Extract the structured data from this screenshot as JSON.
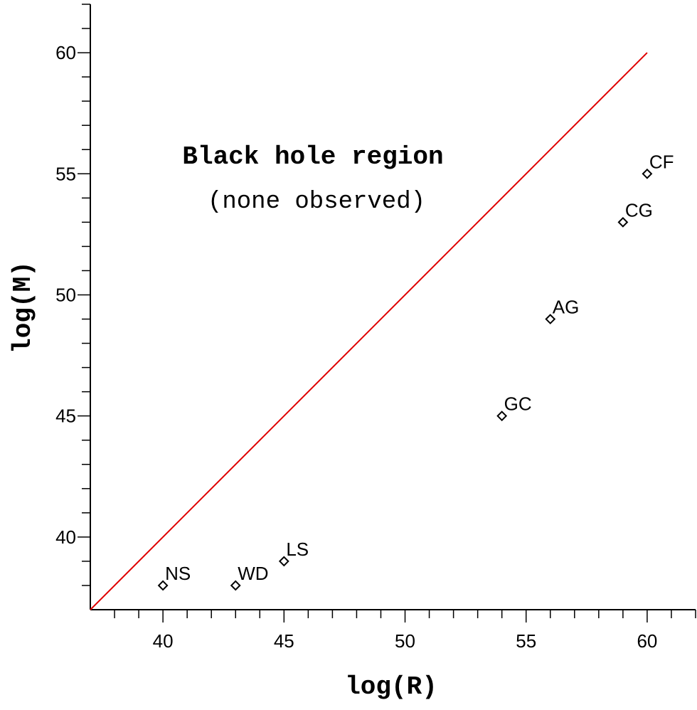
{
  "chart_data": {
    "type": "scatter",
    "xlabel": "log(R)",
    "ylabel": "log(M)",
    "xlim": [
      37,
      62
    ],
    "ylim": [
      37,
      62
    ],
    "xticks": [
      "40",
      "45",
      "50",
      "55",
      "60"
    ],
    "yticks": [
      "40",
      "45",
      "50",
      "55",
      "60"
    ],
    "grid": false,
    "points": [
      {
        "label": "NS",
        "x": 40,
        "y": 38
      },
      {
        "label": "WD",
        "x": 43,
        "y": 38
      },
      {
        "label": "LS",
        "x": 45,
        "y": 39
      },
      {
        "label": "GC",
        "x": 54,
        "y": 45
      },
      {
        "label": "AG",
        "x": 56,
        "y": 49
      },
      {
        "label": "CG",
        "x": 59,
        "y": 53
      },
      {
        "label": "CF",
        "x": 60,
        "y": 55
      }
    ],
    "line": {
      "x": [
        37,
        60
      ],
      "y": [
        37,
        60
      ],
      "color": "#e00000"
    },
    "annotations": {
      "title": "Black hole region",
      "subtitle": "(none observed)"
    }
  }
}
